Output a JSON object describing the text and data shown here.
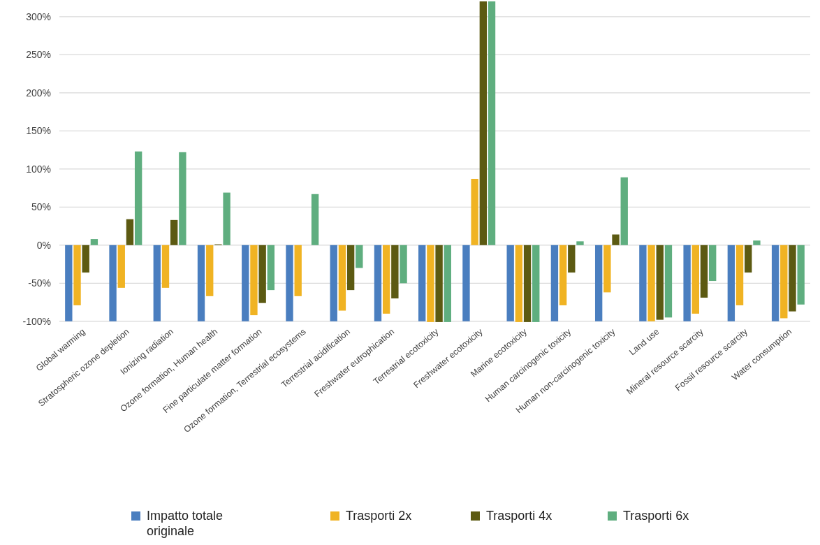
{
  "chart_data": {
    "type": "bar",
    "categories": [
      "Global warming",
      "Stratospheric ozone depletion",
      "Ionizing radiation",
      "Ozone formation, Human health",
      "Fine particulate matter formation",
      "Ozone formation, Terrestrial ecosystems",
      "Terrestrial acidification",
      "Freshwater eutrophication",
      "Terrestrial ecotoxicity",
      "Freshwater ecotoxicity",
      "Marine ecotoxicity",
      "Human carcinogenic toxicity",
      "Human non-carcinogenic toxicity",
      "Land use",
      "Mineral resource scarcity",
      "Fossil resource scarcity",
      "Water consumption"
    ],
    "series": [
      {
        "name": "Impatto totale originale",
        "color": "#4a7ebf",
        "values": [
          -100,
          -100,
          -100,
          -100,
          -100,
          -100,
          -100,
          -100,
          -100,
          -100,
          -100,
          -100,
          -100,
          -100,
          -100,
          -100,
          -100
        ]
      },
      {
        "name": "Trasporti 2x",
        "color": "#f0b323",
        "values": [
          -79,
          -56,
          -56,
          -67,
          -92,
          -67,
          -86,
          -90,
          -101,
          87,
          -101,
          -79,
          -62,
          -100,
          -90,
          -79,
          -96
        ]
      },
      {
        "name": "Trasporti 4x",
        "color": "#5c5a12",
        "values": [
          -36,
          34,
          33,
          1,
          -76,
          0,
          -59,
          -70,
          -101,
          320,
          -101,
          -36,
          14,
          -98,
          -69,
          -36,
          -87
        ]
      },
      {
        "name": "Trasporti 6x",
        "color": "#5fae7f",
        "values": [
          8,
          123,
          122,
          69,
          -59,
          67,
          -30,
          -50,
          -101,
          320,
          -101,
          5,
          89,
          -95,
          -47,
          6,
          -78
        ]
      }
    ],
    "ylim": [
      -102,
      320
    ],
    "yticks": [
      {
        "value": -100,
        "label": "-100%"
      },
      {
        "value": -50,
        "label": "-50%"
      },
      {
        "value": 0,
        "label": "0%"
      },
      {
        "value": 50,
        "label": "50%"
      },
      {
        "value": 100,
        "label": "100%"
      },
      {
        "value": 150,
        "label": "150%"
      },
      {
        "value": 200,
        "label": "200%"
      },
      {
        "value": 250,
        "label": "250%"
      },
      {
        "value": 300,
        "label": "300%"
      }
    ],
    "grid": "y",
    "legend": "bottom"
  }
}
